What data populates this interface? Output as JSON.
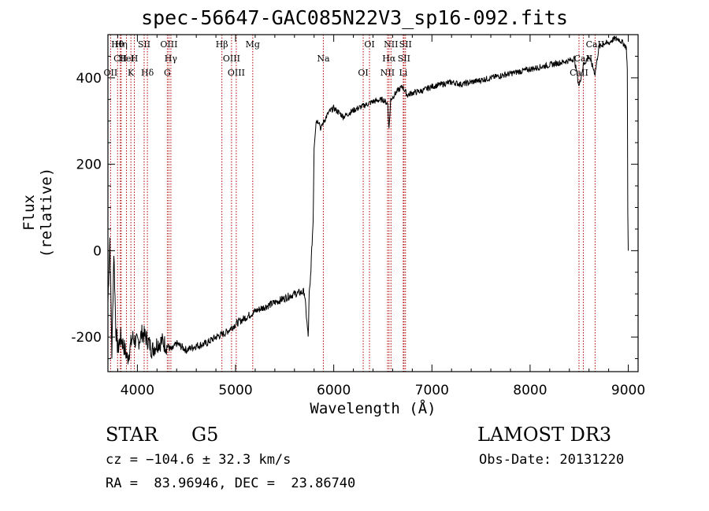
{
  "chart_data": {
    "type": "line",
    "title": "spec-56647-GAC085N22V3_sp16-092.fits",
    "xlabel": "Wavelength (Å)",
    "ylabel": "Flux (relative)",
    "xlim": [
      3700,
      9100
    ],
    "ylim": [
      -280,
      500
    ],
    "xticks": [
      4000,
      5000,
      6000,
      7000,
      8000,
      9000
    ],
    "yticks": [
      -200,
      0,
      200,
      400
    ],
    "series": [
      {
        "name": "flux",
        "x": [
          3700,
          3720,
          3740,
          3760,
          3780,
          3800,
          3830,
          3860,
          3900,
          3950,
          4000,
          4050,
          4100,
          4150,
          4200,
          4250,
          4300,
          4350,
          4400,
          4500,
          4600,
          4700,
          4800,
          4900,
          5000,
          5100,
          5200,
          5300,
          5400,
          5500,
          5600,
          5700,
          5740,
          5750,
          5760,
          5780,
          5790,
          5800,
          5820,
          5850,
          5870,
          5880,
          5900,
          5950,
          6000,
          6100,
          6200,
          6300,
          6400,
          6500,
          6550,
          6563,
          6580,
          6650,
          6700,
          6750,
          6800,
          6900,
          7000,
          7100,
          7200,
          7300,
          7400,
          7500,
          7600,
          7700,
          7800,
          7900,
          8000,
          8100,
          8200,
          8300,
          8400,
          8450,
          8498,
          8542,
          8600,
          8662,
          8700,
          8750,
          8800,
          8850,
          8900,
          8950,
          8980,
          8990,
          8995,
          9000
        ],
        "y": [
          -120,
          30,
          -240,
          0,
          -180,
          -230,
          -200,
          -220,
          -250,
          -200,
          -215,
          -190,
          -205,
          -230,
          -215,
          -210,
          -220,
          -230,
          -215,
          -230,
          -220,
          -215,
          -200,
          -190,
          -170,
          -155,
          -140,
          -130,
          -120,
          -110,
          -100,
          -95,
          -200,
          -100,
          -80,
          20,
          70,
          240,
          300,
          300,
          280,
          290,
          300,
          320,
          330,
          310,
          325,
          335,
          345,
          350,
          340,
          280,
          350,
          370,
          380,
          360,
          365,
          370,
          380,
          385,
          390,
          385,
          390,
          395,
          400,
          405,
          410,
          415,
          420,
          425,
          430,
          435,
          440,
          445,
          380,
          430,
          450,
          410,
          470,
          480,
          480,
          490,
          490,
          480,
          470,
          420,
          90,
          0
        ]
      }
    ],
    "lines": [
      {
        "label": "Hθ",
        "wl": 3798
      },
      {
        "label": "CII",
        "wl": 3826
      },
      {
        "label": "OII",
        "wl": 3727
      },
      {
        "label": "Hη",
        "wl": 3835
      },
      {
        "label": "HeI",
        "wl": 3889
      },
      {
        "label": "K",
        "wl": 3934
      },
      {
        "label": "SII",
        "wl": 4069
      },
      {
        "label": "H",
        "wl": 3969
      },
      {
        "label": "Hδ",
        "wl": 4102
      },
      {
        "label": "OIII",
        "wl": 4321
      },
      {
        "label": "Hγ",
        "wl": 4341
      },
      {
        "label": "G",
        "wl": 4305
      },
      {
        "label": "Hβ",
        "wl": 4861
      },
      {
        "label": "OIII",
        "wl": 4959
      },
      {
        "label": "OIII",
        "wl": 5007
      },
      {
        "label": "Mg",
        "wl": 5175
      },
      {
        "label": "Na",
        "wl": 5894
      },
      {
        "label": "OI",
        "wl": 6300
      },
      {
        "label": "OI",
        "wl": 6364
      },
      {
        "label": "Hα",
        "wl": 6563
      },
      {
        "label": "NII",
        "wl": 6548
      },
      {
        "label": "NII",
        "wl": 6583
      },
      {
        "label": "SII",
        "wl": 6716
      },
      {
        "label": "Li",
        "wl": 6708
      },
      {
        "label": "SII",
        "wl": 6731
      },
      {
        "label": "CaII",
        "wl": 8542
      },
      {
        "label": "CaII",
        "wl": 8498
      },
      {
        "label": "CaII",
        "wl": 8662
      }
    ]
  },
  "info": {
    "class": "STAR",
    "subclass": "G5",
    "survey": "LAMOST DR3",
    "cz": "cz = −104.6 ± 32.3 km/s",
    "obs_date": "Obs-Date: 20131220",
    "radec": "RA =  83.96946, DEC =  23.86740"
  }
}
